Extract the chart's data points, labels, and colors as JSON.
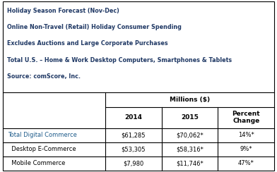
{
  "header_lines": [
    "Holiday Season Forecast (Nov-Dec)",
    "Online Non-Travel (Retail) Holiday Consumer Spending",
    "Excludes Auctions and Large Corporate Purchases",
    "Total U.S. – Home & Work Desktop Computers, Smartphones & Tablets",
    "Source: comScore, Inc."
  ],
  "col_header_top": "Millions ($)",
  "rows": [
    [
      "Total Digital Commerce",
      "$61,285",
      "$70,062*",
      "14%*"
    ],
    [
      "  Desktop E-Commerce",
      "$53,305",
      "$58,316*",
      "9%*"
    ],
    [
      "  Mobile Commerce",
      "$7,980",
      "$11,746*",
      "47%*"
    ]
  ],
  "header_text_color": "#1F3864",
  "row_label_color_0": "#1F5C8B",
  "row_label_color_1": "#000000",
  "row_label_color_2": "#000000",
  "border_color": "#000000",
  "bg_color": "#FFFFFF",
  "fig_width": 3.92,
  "fig_height": 2.44,
  "dpi": 100
}
